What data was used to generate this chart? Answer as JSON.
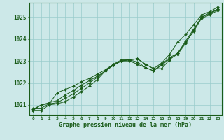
{
  "title": "Graphe pression niveau de la mer (hPa)",
  "xlabel_hours": [
    0,
    1,
    2,
    3,
    4,
    5,
    6,
    7,
    8,
    9,
    10,
    11,
    12,
    13,
    14,
    15,
    16,
    17,
    18,
    19,
    20,
    21,
    22,
    23
  ],
  "ylim": [
    1020.55,
    1025.65
  ],
  "yticks": [
    1021,
    1022,
    1023,
    1024,
    1025
  ],
  "background_color": "#cce8e8",
  "grid_color": "#99cccc",
  "line_color": "#1a5c1a",
  "marker_color": "#1a5c1a",
  "series": [
    [
      1020.75,
      1021.0,
      1021.05,
      1021.1,
      1021.3,
      1021.5,
      1021.75,
      1022.0,
      1022.25,
      1022.55,
      1022.8,
      1023.0,
      1023.05,
      1023.1,
      1022.85,
      1022.65,
      1022.65,
      1023.05,
      1023.35,
      1023.85,
      1024.35,
      1024.95,
      1025.1,
      1025.3
    ],
    [
      1020.8,
      1021.0,
      1021.1,
      1021.2,
      1021.45,
      1021.65,
      1021.9,
      1022.1,
      1022.3,
      1022.55,
      1022.8,
      1023.0,
      1023.05,
      1022.95,
      1022.7,
      1022.55,
      1022.8,
      1023.1,
      1023.3,
      1023.8,
      1024.4,
      1025.0,
      1025.15,
      1025.35
    ],
    [
      1020.85,
      1020.85,
      1021.05,
      1021.55,
      1021.7,
      1021.85,
      1022.05,
      1022.2,
      1022.4,
      1022.6,
      1022.85,
      1023.0,
      1023.0,
      1022.85,
      1022.7,
      1022.55,
      1022.85,
      1023.15,
      1023.35,
      1023.9,
      1024.45,
      1025.0,
      1025.2,
      1025.35
    ],
    [
      1020.75,
      1020.75,
      1021.0,
      1021.05,
      1021.15,
      1021.35,
      1021.6,
      1021.85,
      1022.15,
      1022.55,
      1022.85,
      1023.05,
      1023.05,
      1023.1,
      1022.85,
      1022.65,
      1022.9,
      1023.3,
      1023.85,
      1024.2,
      1024.65,
      1025.1,
      1025.25,
      1025.45
    ]
  ]
}
